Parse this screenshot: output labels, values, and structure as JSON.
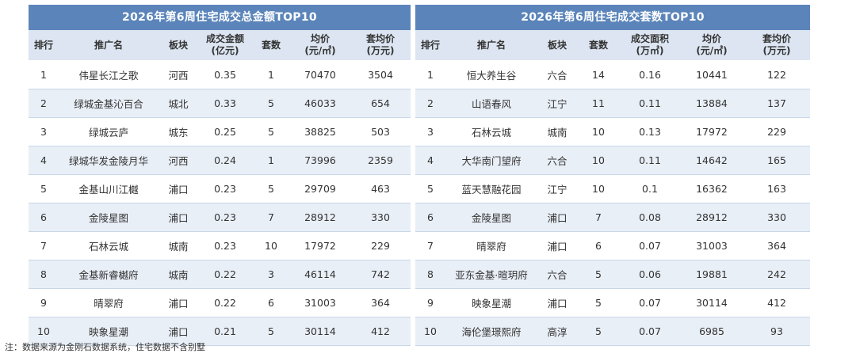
{
  "left": {
    "title": "2026年第6周住宅成交总金额TOP10",
    "headers": [
      {
        "l1": "排行",
        "l2": ""
      },
      {
        "l1": "推广名",
        "l2": ""
      },
      {
        "l1": "板块",
        "l2": ""
      },
      {
        "l1": "成交金额",
        "l2": "(亿元)"
      },
      {
        "l1": "套数",
        "l2": ""
      },
      {
        "l1": "均价",
        "l2": "(元/㎡)"
      },
      {
        "l1": "套均价",
        "l2": "(万元)"
      }
    ],
    "rows": [
      [
        "1",
        "伟星长江之歌",
        "河西",
        "0.35",
        "1",
        "70470",
        "3504"
      ],
      [
        "2",
        "绿城金基沁百合",
        "城北",
        "0.33",
        "5",
        "46033",
        "654"
      ],
      [
        "3",
        "绿城云庐",
        "城东",
        "0.25",
        "5",
        "38825",
        "503"
      ],
      [
        "4",
        "绿城华发金陵月华",
        "河西",
        "0.24",
        "1",
        "73996",
        "2359"
      ],
      [
        "5",
        "金基山川江樾",
        "浦口",
        "0.23",
        "5",
        "29709",
        "463"
      ],
      [
        "6",
        "金陵星图",
        "浦口",
        "0.23",
        "7",
        "28912",
        "330"
      ],
      [
        "7",
        "石林云城",
        "城南",
        "0.23",
        "10",
        "17972",
        "229"
      ],
      [
        "8",
        "金基新睿樾府",
        "城南",
        "0.22",
        "3",
        "46114",
        "742"
      ],
      [
        "9",
        "晴翠府",
        "浦口",
        "0.22",
        "6",
        "31003",
        "364"
      ],
      [
        "10",
        "映象星潮",
        "浦口",
        "0.21",
        "5",
        "30114",
        "412"
      ]
    ]
  },
  "right": {
    "title": "2026年第6周住宅成交套数TOP10",
    "headers": [
      {
        "l1": "排行",
        "l2": ""
      },
      {
        "l1": "推广名",
        "l2": ""
      },
      {
        "l1": "板块",
        "l2": ""
      },
      {
        "l1": "套数",
        "l2": ""
      },
      {
        "l1": "成交面积",
        "l2": "(万㎡)"
      },
      {
        "l1": "均价",
        "l2": "(元/㎡)"
      },
      {
        "l1": "套均价",
        "l2": "(万元)"
      }
    ],
    "rows": [
      [
        "1",
        "恒大养生谷",
        "六合",
        "14",
        "0.16",
        "10441",
        "122"
      ],
      [
        "2",
        "山语春风",
        "江宁",
        "11",
        "0.11",
        "13884",
        "137"
      ],
      [
        "3",
        "石林云城",
        "城南",
        "10",
        "0.13",
        "17972",
        "229"
      ],
      [
        "4",
        "大华南门望府",
        "六合",
        "10",
        "0.11",
        "14642",
        "165"
      ],
      [
        "5",
        "蓝天慧融花园",
        "江宁",
        "10",
        "0.1",
        "16362",
        "163"
      ],
      [
        "6",
        "金陵星图",
        "浦口",
        "7",
        "0.08",
        "28912",
        "330"
      ],
      [
        "7",
        "晴翠府",
        "浦口",
        "6",
        "0.07",
        "31003",
        "364"
      ],
      [
        "8",
        "亚东金基·暄玥府",
        "六合",
        "5",
        "0.06",
        "19881",
        "242"
      ],
      [
        "9",
        "映象星潮",
        "浦口",
        "5",
        "0.07",
        "30114",
        "412"
      ],
      [
        "10",
        "海伦堡璟熙府",
        "高淳",
        "5",
        "0.07",
        "6985",
        "93"
      ]
    ]
  },
  "note": "注：数据来源为金刚石数据系统，住宅数据不含别墅",
  "colors": {
    "title_bg": "#5b85ba",
    "header_bg": "#dce5f1",
    "stripe": "#e9eff7"
  }
}
